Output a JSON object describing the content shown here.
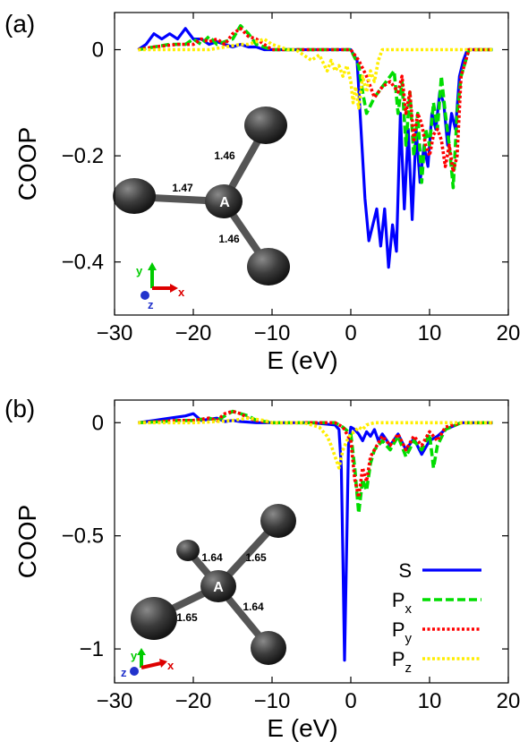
{
  "chart_data": [
    {
      "panel_label": "(a)",
      "type": "line",
      "xlabel": "E (eV)",
      "ylabel": "COOP",
      "xlim": [
        -30,
        20
      ],
      "ylim": [
        -0.5,
        0.07
      ],
      "xticks": [
        -30,
        -20,
        -10,
        0,
        10,
        20
      ],
      "xtick_labels": [
        "−30",
        "−20",
        "−10",
        "0",
        "10",
        "20"
      ],
      "yticks": [
        0,
        -0.2,
        -0.4
      ],
      "ytick_labels": [
        "0",
        "−0.2",
        "−0.4"
      ],
      "grid": false,
      "series": [
        {
          "key": "S",
          "color": "#0000ff",
          "dash": "solid",
          "x": [
            -27,
            -26,
            -25,
            -24,
            -23,
            -22,
            -21,
            -20,
            -19,
            -18,
            -17,
            -16,
            -15,
            -14,
            -13,
            -12,
            -11,
            -10,
            -8,
            -5,
            -2,
            0,
            0.8,
            1.3,
            1.8,
            2.3,
            2.8,
            3.3,
            3.8,
            4.3,
            4.8,
            5.3,
            5.8,
            6.3,
            6.8,
            7.3,
            7.8,
            8.3,
            8.8,
            9.3,
            9.8,
            10.3,
            10.8,
            11.3,
            11.8,
            12.3,
            12.8,
            13.3,
            13.8,
            14.3,
            14.8,
            16,
            18
          ],
          "y": [
            0,
            0.01,
            0.03,
            0.02,
            0.03,
            0.02,
            0.04,
            0.02,
            0.02,
            0.01,
            0.015,
            0.01,
            0.005,
            0.01,
            0.005,
            0.005,
            0,
            0,
            0,
            0,
            0,
            0,
            -0.02,
            -0.15,
            -0.28,
            -0.36,
            -0.33,
            -0.3,
            -0.37,
            -0.3,
            -0.41,
            -0.33,
            -0.38,
            -0.12,
            -0.3,
            -0.15,
            -0.32,
            -0.15,
            -0.25,
            -0.18,
            -0.22,
            -0.12,
            -0.15,
            -0.08,
            -0.1,
            -0.18,
            -0.12,
            -0.15,
            -0.05,
            -0.02,
            0,
            0,
            0
          ]
        },
        {
          "key": "Px",
          "color": "#00dd00",
          "dash": "dashed",
          "x": [
            -27,
            -25,
            -23,
            -21,
            -20,
            -19,
            -18,
            -17,
            -16,
            -15,
            -14,
            -13,
            -12,
            -11,
            -10,
            -8,
            -5,
            -2,
            0,
            1,
            1.5,
            2,
            3,
            4,
            5,
            5.5,
            6,
            6.5,
            7,
            7.5,
            8,
            8.5,
            9,
            9.5,
            10,
            10.5,
            11,
            11.5,
            12,
            12.5,
            13,
            13.5,
            14,
            15,
            16,
            18
          ],
          "y": [
            0,
            0.005,
            0.01,
            0.01,
            0.02,
            0.01,
            0.025,
            0.01,
            0.015,
            0.02,
            0.045,
            0.03,
            0.01,
            0.005,
            0,
            0,
            0,
            0,
            0,
            -0.03,
            -0.08,
            -0.12,
            -0.09,
            -0.07,
            -0.05,
            -0.04,
            -0.12,
            -0.06,
            -0.18,
            -0.08,
            -0.2,
            -0.12,
            -0.25,
            -0.15,
            -0.18,
            -0.1,
            -0.15,
            -0.05,
            -0.12,
            -0.18,
            -0.26,
            -0.12,
            -0.05,
            0,
            0,
            0
          ]
        },
        {
          "key": "Py",
          "color": "#ff0000",
          "dash": "dotted",
          "x": [
            -27,
            -25,
            -22,
            -20,
            -19,
            -18,
            -17,
            -16,
            -15,
            -14,
            -13,
            -12,
            -11,
            -10,
            -8,
            -5,
            -2,
            0,
            1,
            2,
            3,
            4,
            5,
            6,
            6.5,
            7,
            7.5,
            8,
            8.5,
            9,
            9.5,
            10,
            10.5,
            11,
            11.5,
            12,
            12.5,
            13,
            13.5,
            14,
            15,
            16,
            18
          ],
          "y": [
            0,
            0.005,
            0.01,
            0.01,
            0.02,
            0.015,
            0.02,
            0.01,
            0.03,
            0.04,
            0.025,
            0.02,
            0.01,
            0,
            0,
            0,
            0,
            0,
            -0.02,
            -0.05,
            -0.09,
            -0.07,
            -0.06,
            -0.08,
            -0.05,
            -0.12,
            -0.08,
            -0.17,
            -0.12,
            -0.14,
            -0.18,
            -0.2,
            -0.16,
            -0.15,
            -0.17,
            -0.22,
            -0.18,
            -0.23,
            -0.2,
            -0.05,
            0,
            0,
            0
          ]
        },
        {
          "key": "Pz",
          "color": "#ffee00",
          "dash": "dotted",
          "x": [
            -27,
            -25,
            -22,
            -20,
            -18,
            -16,
            -14,
            -13,
            -12,
            -11,
            -10,
            -9,
            -8,
            -7,
            -6,
            -5,
            -4,
            -3,
            -2.5,
            -2,
            -1.5,
            -1,
            -0.5,
            0,
            0.3,
            0.6,
            1,
            1.5,
            2,
            2.5,
            3,
            3.5,
            4,
            5,
            6,
            8,
            10,
            12,
            14,
            16,
            18
          ],
          "y": [
            0,
            0,
            0,
            0,
            0,
            0.005,
            0.01,
            0.01,
            0.015,
            0.02,
            0.01,
            0.005,
            0,
            0,
            -0.01,
            -0.02,
            -0.01,
            -0.04,
            -0.02,
            -0.04,
            -0.03,
            -0.05,
            -0.03,
            -0.06,
            -0.1,
            -0.07,
            -0.11,
            -0.05,
            -0.08,
            -0.04,
            -0.06,
            -0.02,
            0,
            0,
            0,
            0,
            0,
            0,
            0,
            0,
            0
          ]
        }
      ],
      "inset": {
        "label_center": "A",
        "bond_labels": [
          "1.46",
          "1.47",
          "1.46"
        ],
        "axes": [
          "y",
          "x",
          "z"
        ]
      }
    },
    {
      "panel_label": "(b)",
      "type": "line",
      "xlabel": "E (eV)",
      "ylabel": "COOP",
      "xlim": [
        -30,
        20
      ],
      "ylim": [
        -1.15,
        0.1
      ],
      "xticks": [
        -30,
        -20,
        -10,
        0,
        10,
        20
      ],
      "xtick_labels": [
        "−30",
        "−20",
        "−10",
        "0",
        "10",
        "20"
      ],
      "yticks": [
        0,
        -0.5,
        -1
      ],
      "ytick_labels": [
        "0",
        "−0.5",
        "−1"
      ],
      "grid": false,
      "legend_position": "bottom-right",
      "series": [
        {
          "key": "S",
          "name_main": "S",
          "name_sub": "",
          "color": "#0000ff",
          "dash": "solid",
          "x": [
            -27,
            -25,
            -23,
            -21,
            -20,
            -19,
            -18,
            -17,
            -16,
            -15,
            -14,
            -12,
            -10,
            -8,
            -5,
            -2,
            -1.5,
            -1.2,
            -1,
            -0.8,
            -0.5,
            -0.3,
            0,
            0.5,
            1,
            1.5,
            2,
            2.5,
            3,
            3.5,
            4,
            5,
            6,
            7,
            8,
            9,
            10,
            11,
            12,
            14,
            16,
            18
          ],
          "y": [
            0,
            0.01,
            0.02,
            0.03,
            0.04,
            0.01,
            0.015,
            0.02,
            0.005,
            0.01,
            0.005,
            0,
            0,
            0,
            0,
            -0.01,
            -0.03,
            -0.2,
            -0.6,
            -1.05,
            -0.5,
            -0.1,
            -0.02,
            -0.03,
            -0.05,
            -0.08,
            -0.04,
            -0.06,
            -0.03,
            -0.08,
            -0.05,
            -0.1,
            -0.05,
            -0.12,
            -0.07,
            -0.14,
            -0.08,
            -0.06,
            -0.03,
            0,
            0,
            0
          ]
        },
        {
          "key": "Px",
          "name_main": "P",
          "name_sub": "x",
          "color": "#00dd00",
          "dash": "dashed",
          "x": [
            -27,
            -24,
            -22,
            -20,
            -18,
            -17,
            -16,
            -15,
            -14,
            -13,
            -12,
            -11,
            -10,
            -8,
            -5,
            -2,
            -1,
            0,
            0.5,
            1,
            1.5,
            2,
            2.5,
            3,
            4,
            5,
            6,
            7,
            8,
            9,
            10,
            10.5,
            11,
            12,
            14,
            16,
            18
          ],
          "y": [
            0,
            0.005,
            0.01,
            0.01,
            0.02,
            0.01,
            0.03,
            0.05,
            0.04,
            0.03,
            0.01,
            0.005,
            0,
            0,
            0,
            0,
            -0.02,
            -0.05,
            -0.2,
            -0.4,
            -0.25,
            -0.3,
            -0.18,
            -0.12,
            -0.08,
            -0.12,
            -0.06,
            -0.15,
            -0.08,
            -0.12,
            -0.05,
            -0.2,
            -0.1,
            -0.03,
            0,
            0,
            0
          ]
        },
        {
          "key": "Py",
          "name_main": "P",
          "name_sub": "y",
          "color": "#ff0000",
          "dash": "dotted",
          "x": [
            -27,
            -24,
            -22,
            -20,
            -18,
            -17,
            -16,
            -15,
            -14,
            -13,
            -12,
            -11,
            -10,
            -8,
            -5,
            -2,
            -1,
            0,
            0.5,
            1,
            1.5,
            2,
            2.5,
            3,
            4,
            5,
            6,
            7,
            8,
            9,
            10,
            11,
            12,
            14,
            16,
            18
          ],
          "y": [
            0,
            0.005,
            0.01,
            0.01,
            0.02,
            0.01,
            0.04,
            0.05,
            0.04,
            0.02,
            0.01,
            0.005,
            0,
            0,
            0,
            0,
            -0.02,
            -0.08,
            -0.25,
            -0.33,
            -0.2,
            -0.26,
            -0.15,
            -0.12,
            -0.06,
            -0.1,
            -0.05,
            -0.12,
            -0.06,
            -0.1,
            -0.04,
            -0.08,
            -0.02,
            0,
            0,
            0
          ]
        },
        {
          "key": "Pz",
          "name_main": "P",
          "name_sub": "z",
          "color": "#ffee00",
          "dash": "dotted",
          "x": [
            -27,
            -24,
            -20,
            -17,
            -15,
            -13,
            -12,
            -11,
            -10,
            -8,
            -6,
            -5,
            -4,
            -3,
            -2.5,
            -2,
            -1.5,
            -1,
            -0.5,
            0,
            0.5,
            1,
            1.5,
            2,
            3,
            4,
            5,
            7,
            9,
            12,
            14,
            16,
            18
          ],
          "y": [
            0,
            0,
            0,
            0.005,
            0.01,
            0.02,
            0.015,
            0.01,
            0,
            0,
            0,
            -0.01,
            -0.02,
            -0.06,
            -0.1,
            -0.15,
            -0.2,
            -0.12,
            -0.08,
            -0.05,
            -0.04,
            -0.02,
            -0.03,
            -0.01,
            0,
            0,
            0,
            0,
            0,
            0,
            0,
            0,
            0
          ]
        }
      ],
      "inset": {
        "label_center": "A",
        "bond_labels": [
          "1.64",
          "1.65",
          "1.65",
          "1.64"
        ],
        "axes": [
          "y",
          "x",
          "z"
        ]
      }
    }
  ]
}
